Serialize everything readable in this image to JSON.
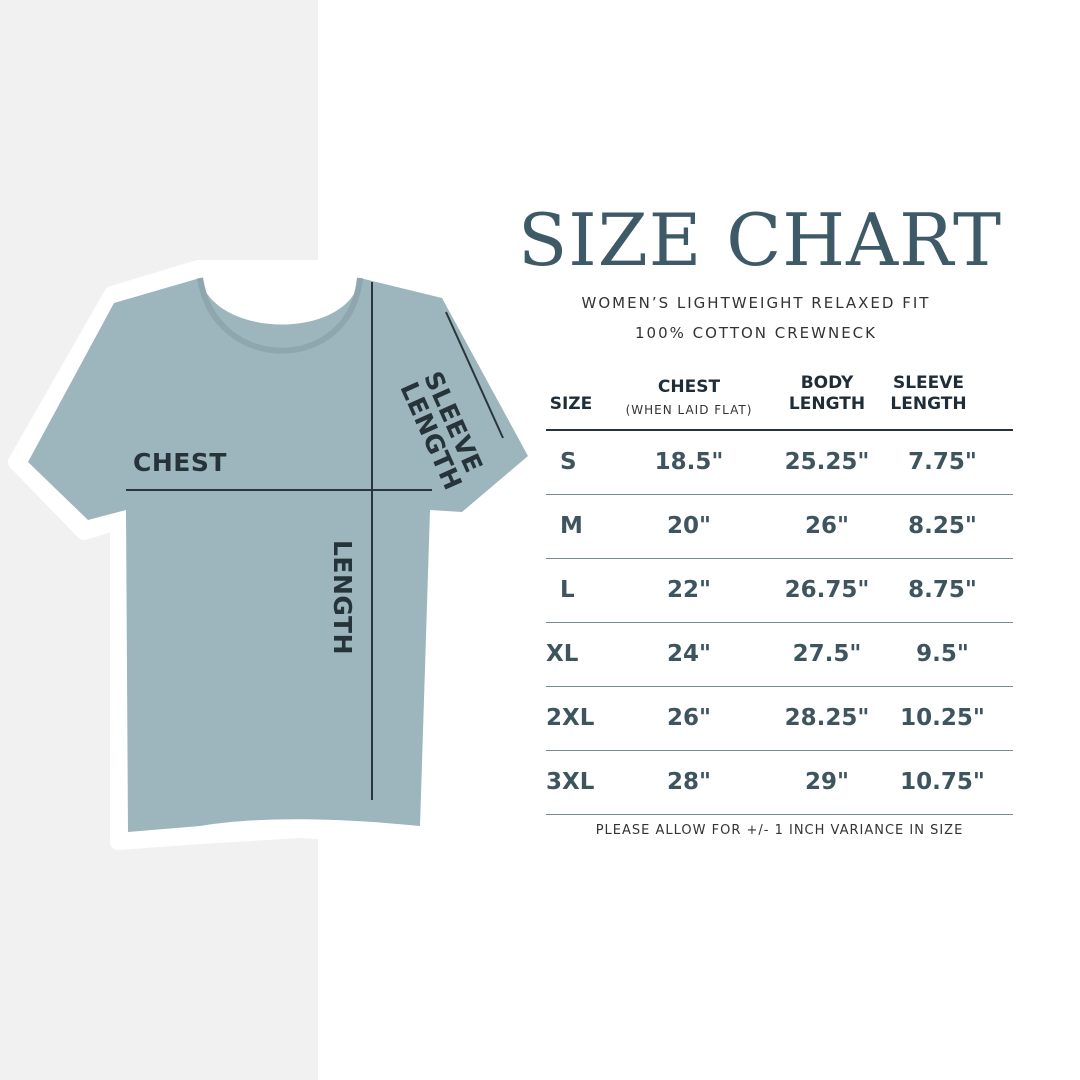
{
  "title": "SIZE CHART",
  "subtitle_line1": "WOMEN’S LIGHTWEIGHT RELAXED FIT",
  "subtitle_line2": "100% COTTON CREWNECK",
  "shirt_labels": {
    "chest": "CHEST",
    "length": "LENGTH",
    "sleeve_line1": "SLEEVE",
    "sleeve_line2": "LENGTH"
  },
  "colors": {
    "shirt": "#9db5bc",
    "title": "#3e5a66",
    "panel": "#f1f1f1"
  },
  "table": {
    "headers": {
      "size": "SIZE",
      "chest": "CHEST",
      "chest_note": "(WHEN LAID FLAT)",
      "body": "BODY LENGTH",
      "sleeve": "SLEEVE LENGTH"
    },
    "rows": [
      {
        "size": "S",
        "chest": "18.5\"",
        "body": "25.25\"",
        "sleeve": "7.75\""
      },
      {
        "size": "M",
        "chest": "20\"",
        "body": "26\"",
        "sleeve": "8.25\""
      },
      {
        "size": "L",
        "chest": "22\"",
        "body": "26.75\"",
        "sleeve": "8.75\""
      },
      {
        "size": "XL",
        "chest": "24\"",
        "body": "27.5\"",
        "sleeve": "9.5\""
      },
      {
        "size": "2XL",
        "chest": "26\"",
        "body": "28.25\"",
        "sleeve": "10.25\""
      },
      {
        "size": "3XL",
        "chest": "28\"",
        "body": "29\"",
        "sleeve": "10.75\""
      }
    ]
  },
  "note": "PLEASE ALLOW FOR +/- 1 INCH VARIANCE IN SIZE"
}
